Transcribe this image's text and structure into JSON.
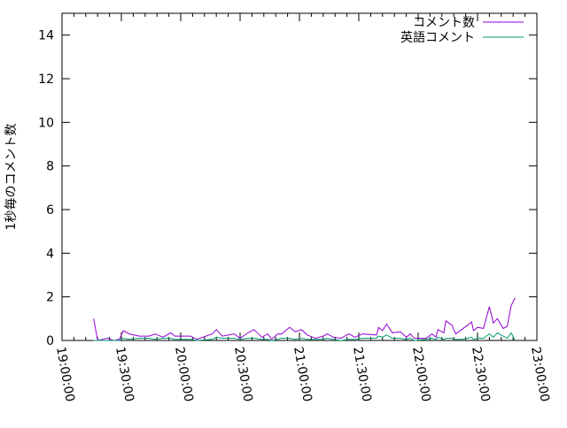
{
  "chart_data": {
    "type": "line",
    "title": "",
    "xlabel": "",
    "ylabel": "1秒毎のコメント数",
    "xlim": [
      "19:00:00",
      "23:00:00"
    ],
    "ylim": [
      0,
      15
    ],
    "xticks": [
      "19:00:00",
      "19:30:00",
      "20:00:00",
      "20:30:00",
      "21:00:00",
      "21:30:00",
      "22:00:00",
      "22:30:00",
      "23:00:00"
    ],
    "yticks": [
      "0",
      "2",
      "4",
      "6",
      "8",
      "10",
      "12",
      "14"
    ],
    "grid": false,
    "legend_position": "top-right",
    "x": [
      "19:16",
      "19:18",
      "19:23",
      "19:26",
      "19:29",
      "19:31",
      "19:34",
      "19:39",
      "19:44",
      "19:47",
      "19:51",
      "19:55",
      "19:57",
      "20:05",
      "20:08",
      "20:16",
      "20:18",
      "20:21",
      "20:27",
      "20:30",
      "20:34",
      "20:37",
      "20:41",
      "20:44",
      "20:46",
      "20:49",
      "20:51",
      "20:55",
      "20:58",
      "21:01",
      "21:04",
      "21:08",
      "21:12",
      "21:14",
      "21:17",
      "21:21",
      "21:25",
      "21:28",
      "21:32",
      "21:39",
      "21:40",
      "21:42",
      "21:44",
      "21:47",
      "21:51",
      "21:54",
      "21:56",
      "21:58",
      "22:04",
      "22:07",
      "22:09",
      "22:10",
      "22:13",
      "22:14",
      "22:17",
      "22:19",
      "22:22",
      "22:25",
      "22:27",
      "22:28",
      "22:30",
      "22:33",
      "22:36",
      "22:38",
      "22:40",
      "22:43",
      "22:45",
      "22:47",
      "22:49"
    ],
    "series": [
      {
        "name": "コメント数",
        "color": "#9400d3",
        "values": [
          1.0,
          0,
          0.1,
          0,
          0.05,
          0.45,
          0.3,
          0.2,
          0.2,
          0.3,
          0.15,
          0.35,
          0.2,
          0.2,
          0.05,
          0.3,
          0.5,
          0.2,
          0.3,
          0.1,
          0.35,
          0.5,
          0.15,
          0.3,
          0.05,
          0.3,
          0.3,
          0.6,
          0.4,
          0.5,
          0.25,
          0.1,
          0.2,
          0.3,
          0.15,
          0.1,
          0.3,
          0.15,
          0.3,
          0.25,
          0.6,
          0.45,
          0.75,
          0.35,
          0.4,
          0.15,
          0.3,
          0.1,
          0.1,
          0.3,
          0.15,
          0.5,
          0.35,
          0.9,
          0.7,
          0.3,
          0.5,
          0.7,
          0.85,
          0.45,
          0.6,
          0.55,
          1.55,
          0.8,
          1.0,
          0.55,
          0.65,
          1.6,
          1.95
        ]
      },
      {
        "name": "英語コメント",
        "color": "#009e73",
        "values": [
          0,
          0,
          0,
          0,
          0,
          0.1,
          0.05,
          0.1,
          0.1,
          0.05,
          0.1,
          0.1,
          0.05,
          0.05,
          0,
          0.05,
          0.15,
          0.1,
          0.1,
          0.05,
          0.1,
          0.1,
          0.05,
          0.05,
          0,
          0.05,
          0.1,
          0.1,
          0.05,
          0.1,
          0.05,
          0.05,
          0.05,
          0.1,
          0.05,
          0,
          0.05,
          0.05,
          0.1,
          0.1,
          0.2,
          0.15,
          0.25,
          0.1,
          0.1,
          0.05,
          0.1,
          0,
          0.05,
          0.1,
          0.05,
          0.15,
          0.05,
          0.1,
          0.1,
          0.05,
          0.05,
          0.1,
          0.15,
          0.05,
          0.1,
          0.1,
          0.3,
          0.15,
          0.35,
          0.2,
          0.1,
          0.35,
          0
        ]
      }
    ]
  }
}
